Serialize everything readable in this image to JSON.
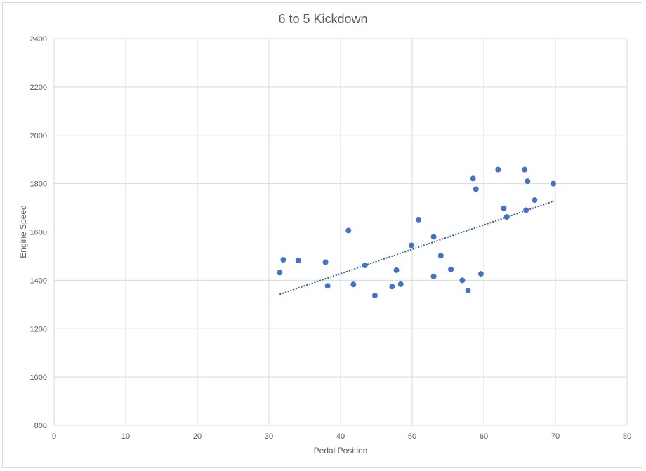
{
  "chart_data": {
    "type": "scatter",
    "title": "6 to 5 Kickdown",
    "xlabel": "Pedal Position",
    "ylabel": "Engine Speed",
    "xlim": [
      0,
      80
    ],
    "ylim": [
      800,
      2400
    ],
    "xticks": [
      0,
      10,
      20,
      30,
      40,
      50,
      60,
      70,
      80
    ],
    "yticks": [
      800,
      1000,
      1200,
      1400,
      1600,
      1800,
      2000,
      2200,
      2400
    ],
    "grid": true,
    "legend": "none",
    "marker_color": "#4472c4",
    "trendline": {
      "type": "linear",
      "style": "dotted",
      "color": "#2e5e9e",
      "x": [
        31.5,
        69.8
      ],
      "y": [
        1342,
        1728
      ]
    },
    "points": [
      {
        "x": 31.5,
        "y": 1432
      },
      {
        "x": 32.0,
        "y": 1485
      },
      {
        "x": 34.1,
        "y": 1482
      },
      {
        "x": 37.9,
        "y": 1475
      },
      {
        "x": 38.2,
        "y": 1377
      },
      {
        "x": 41.1,
        "y": 1606
      },
      {
        "x": 41.8,
        "y": 1383
      },
      {
        "x": 43.4,
        "y": 1462
      },
      {
        "x": 44.8,
        "y": 1337
      },
      {
        "x": 47.2,
        "y": 1374
      },
      {
        "x": 47.8,
        "y": 1442
      },
      {
        "x": 48.4,
        "y": 1384
      },
      {
        "x": 49.9,
        "y": 1545
      },
      {
        "x": 50.9,
        "y": 1651
      },
      {
        "x": 53.0,
        "y": 1580
      },
      {
        "x": 53.0,
        "y": 1416
      },
      {
        "x": 54.0,
        "y": 1502
      },
      {
        "x": 55.4,
        "y": 1445
      },
      {
        "x": 57.0,
        "y": 1400
      },
      {
        "x": 57.8,
        "y": 1357
      },
      {
        "x": 58.5,
        "y": 1821
      },
      {
        "x": 58.9,
        "y": 1777
      },
      {
        "x": 59.6,
        "y": 1427
      },
      {
        "x": 62.0,
        "y": 1858
      },
      {
        "x": 62.8,
        "y": 1698
      },
      {
        "x": 63.2,
        "y": 1662
      },
      {
        "x": 65.7,
        "y": 1858
      },
      {
        "x": 65.9,
        "y": 1690
      },
      {
        "x": 66.1,
        "y": 1810
      },
      {
        "x": 67.1,
        "y": 1732
      },
      {
        "x": 69.7,
        "y": 1800
      }
    ]
  }
}
